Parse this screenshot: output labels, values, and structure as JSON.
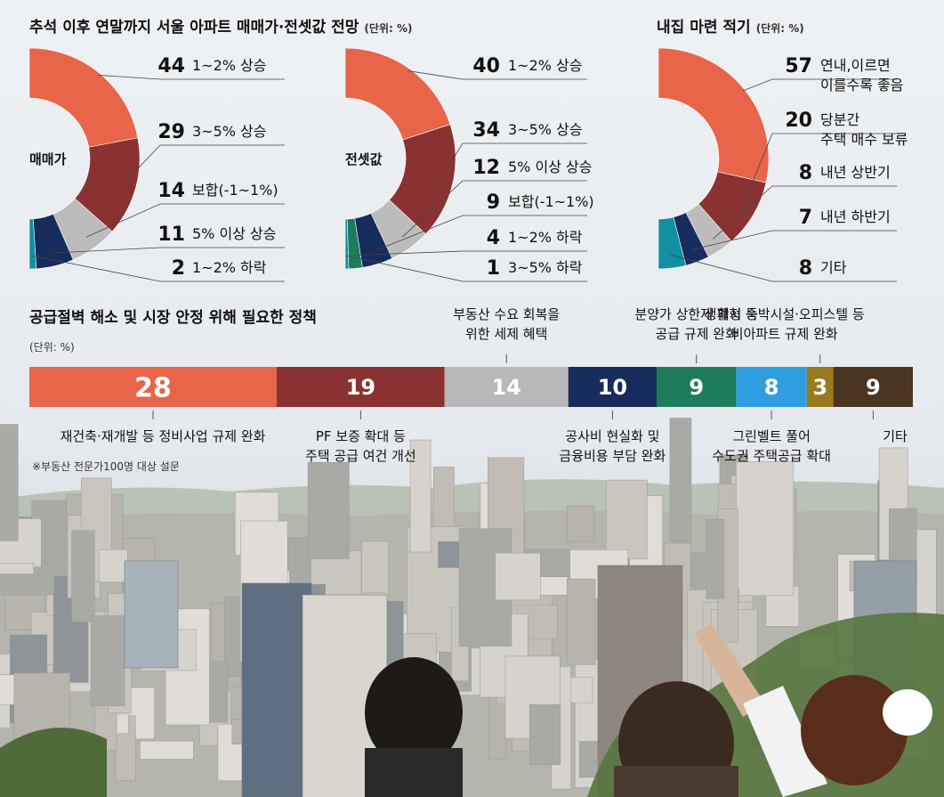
{
  "header": {
    "title1": "추석 이후 연말까지 서울 아파트 매매가·전셋값 전망",
    "unit1": "(단위: %)",
    "title2": "내집 마련 적기",
    "unit2": "(단위: %)"
  },
  "chart_data": [
    {
      "type": "pie",
      "center_label": "매매가",
      "categories": [
        "1~2% 상승",
        "3~5% 상승",
        "보합(-1~1%)",
        "5% 이상 상승",
        "1~2% 하락"
      ],
      "values": [
        44,
        29,
        14,
        11,
        2
      ],
      "colors": [
        "#e8654a",
        "#8a3232",
        "#bcbcbc",
        "#162c5c",
        "#138ea2"
      ]
    },
    {
      "type": "pie",
      "center_label": "전셋값",
      "categories": [
        "1~2% 상승",
        "3~5% 상승",
        "5% 이상 상승",
        "보합(-1~1%)",
        "1~2% 하락",
        "3~5% 하락"
      ],
      "values": [
        40,
        34,
        12,
        9,
        4,
        1
      ],
      "colors": [
        "#e8654a",
        "#8a3232",
        "#bcbcbc",
        "#162c5c",
        "#1e7c5c",
        "#138ea2"
      ]
    },
    {
      "type": "pie",
      "center_label": "",
      "categories": [
        "연내,이르면|이를수록 좋음",
        "당분간|주택 매수 보류",
        "내년 상반기",
        "내년 하반기",
        "기타"
      ],
      "values": [
        57,
        20,
        8,
        7,
        8
      ],
      "colors": [
        "#e8654a",
        "#8a3232",
        "#bcbcbc",
        "#162c5c",
        "#138ea2"
      ]
    },
    {
      "type": "bar",
      "title": "공급절벽 해소 및 시장 안정 위해 필요한 정책",
      "unit": "(단위: %)",
      "categories": [
        "재건축·재개발 등 정비사업 규제 완화",
        "PF 보증 확대 등|주택 공급 여건 개선",
        "부동산 수요 회복을|위한 세제 혜택",
        "공사비 현실화 및|금융비용 부담 완화",
        "분양가 상한제 폐지 등|공급 규제 완화",
        "그린벨트 풀어|수도권 주택공급 확대",
        "생활형 숙박시설·오피스텔 등|비아파트 규제 완화",
        "기타"
      ],
      "values": [
        28,
        19,
        14,
        10,
        9,
        8,
        3,
        9
      ],
      "colors": [
        "#e8654a",
        "#8a3232",
        "#b8b8b8",
        "#162c5c",
        "#1e7c5c",
        "#2f9ee0",
        "#9a7a1e",
        "#4a3520"
      ]
    }
  ],
  "note": "※부동산 전문가100명 대상 설문"
}
